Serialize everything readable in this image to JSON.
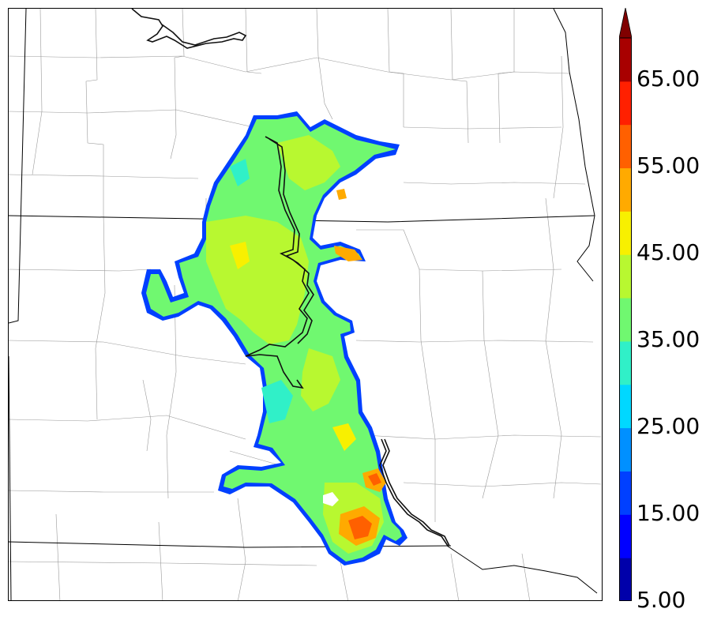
{
  "colorbar": {
    "labels": [
      "65.00",
      "55.00",
      "45.00",
      "35.00",
      "25.00",
      "15.00",
      "5.00"
    ],
    "bins": [
      {
        "min": 5,
        "max": 10,
        "color": "#0000aa"
      },
      {
        "min": 10,
        "max": 15,
        "color": "#0000ff"
      },
      {
        "min": 15,
        "max": 20,
        "color": "#0040ff"
      },
      {
        "min": 20,
        "max": 25,
        "color": "#0090ff"
      },
      {
        "min": 25,
        "max": 30,
        "color": "#00d8ff"
      },
      {
        "min": 30,
        "max": 35,
        "color": "#30f0c8"
      },
      {
        "min": 35,
        "max": 40,
        "color": "#70f870"
      },
      {
        "min": 40,
        "max": 45,
        "color": "#b8f830"
      },
      {
        "min": 45,
        "max": 50,
        "color": "#f8f000"
      },
      {
        "min": 50,
        "max": 55,
        "color": "#ffaa00"
      },
      {
        "min": 55,
        "max": 60,
        "color": "#ff6000"
      },
      {
        "min": 60,
        "max": 65,
        "color": "#ff2000"
      },
      {
        "min": 65,
        "max": 70,
        "color": "#a80000"
      }
    ],
    "extend_arrow_color": "#800000"
  }
}
